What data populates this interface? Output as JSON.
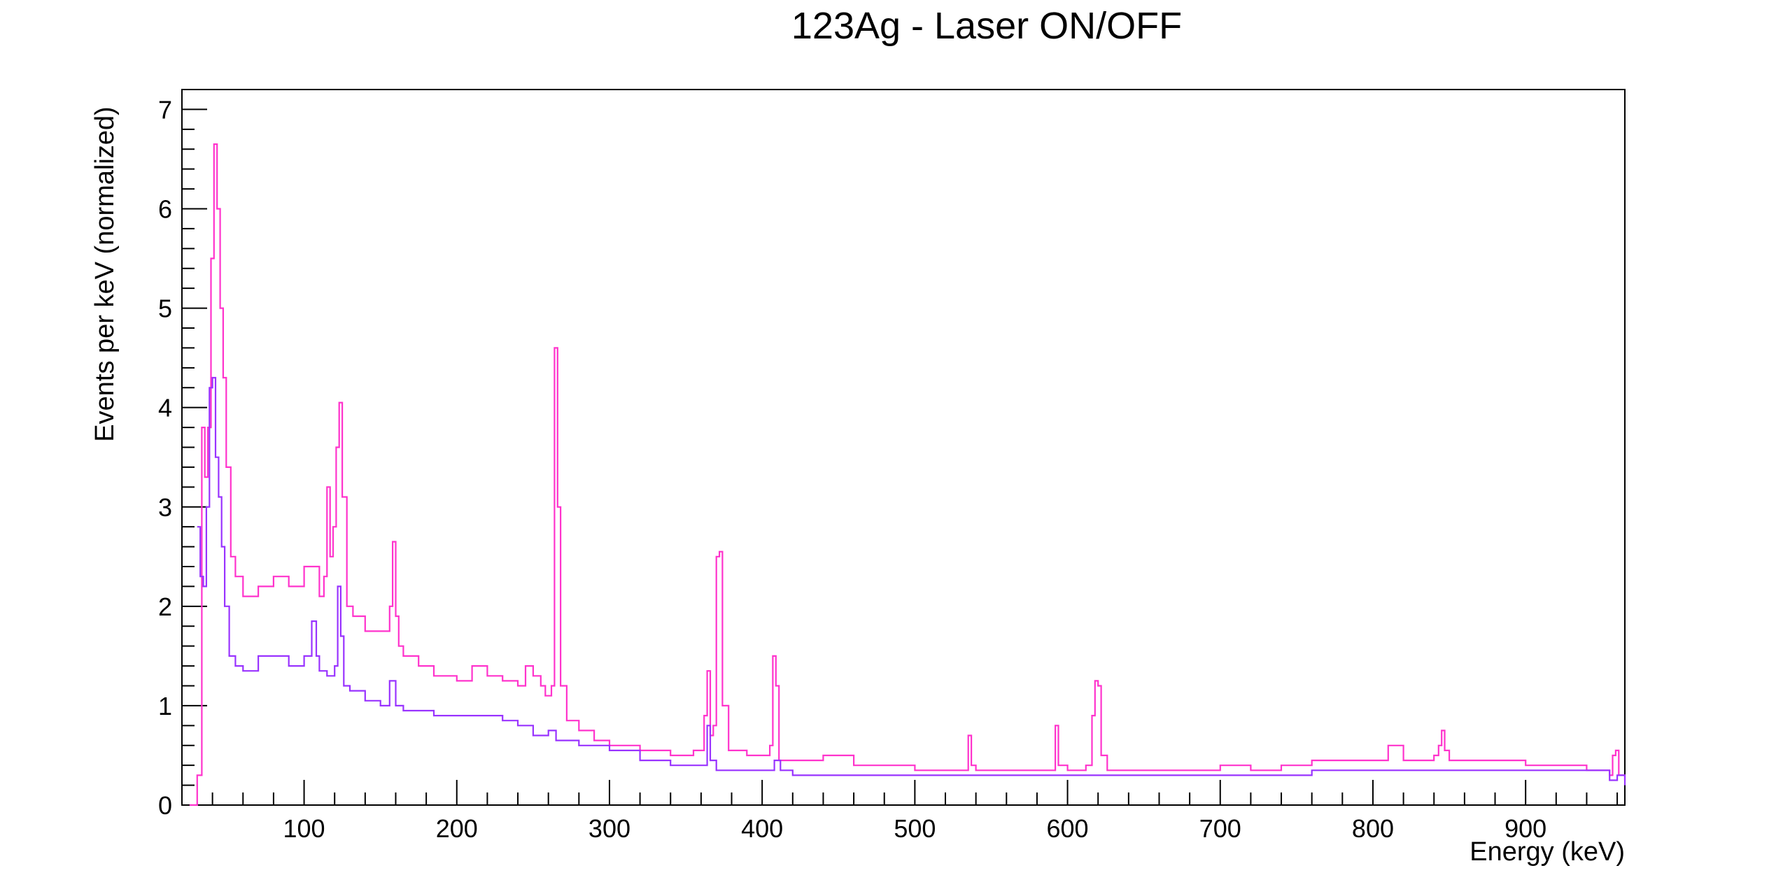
{
  "chart_data": {
    "type": "line",
    "title": "123Ag - Laser ON/OFF",
    "xlabel": "Energy (keV)",
    "ylabel": "Events per keV (normalized)",
    "xlim": [
      20,
      965
    ],
    "ylim": [
      0,
      7.2
    ],
    "x_ticks": [
      {
        "value": 100,
        "label": "100"
      },
      {
        "value": 200,
        "label": "200"
      },
      {
        "value": 300,
        "label": "300"
      },
      {
        "value": 400,
        "label": "400"
      },
      {
        "value": 500,
        "label": "500"
      },
      {
        "value": 600,
        "label": "600"
      },
      {
        "value": 700,
        "label": "700"
      },
      {
        "value": 800,
        "label": "800"
      },
      {
        "value": 900,
        "label": "900"
      }
    ],
    "y_ticks": [
      {
        "value": 0,
        "label": "0"
      },
      {
        "value": 1,
        "label": "1"
      },
      {
        "value": 2,
        "label": "2"
      },
      {
        "value": 3,
        "label": "3"
      },
      {
        "value": 4,
        "label": "4"
      },
      {
        "value": 5,
        "label": "5"
      },
      {
        "value": 6,
        "label": "6"
      },
      {
        "value": 7,
        "label": "7"
      }
    ],
    "grid": false,
    "legend": "none",
    "series": [
      {
        "color": "#ff33cc",
        "style": "step",
        "x": [
          25,
          30,
          33,
          35,
          37,
          39,
          41,
          43,
          45,
          47,
          49,
          52,
          55,
          60,
          70,
          80,
          90,
          100,
          110,
          113,
          115,
          117,
          119,
          121,
          123,
          125,
          128,
          132,
          140,
          150,
          156,
          158,
          160,
          162,
          165,
          175,
          185,
          200,
          210,
          220,
          230,
          240,
          245,
          250,
          255,
          258,
          260,
          262,
          264,
          266,
          268,
          272,
          280,
          290,
          300,
          320,
          340,
          355,
          362,
          364,
          366,
          368,
          370,
          372,
          374,
          378,
          390,
          405,
          407,
          409,
          411,
          415,
          425,
          440,
          460,
          480,
          500,
          520,
          533,
          535,
          537,
          540,
          560,
          580,
          590,
          592,
          594,
          600,
          612,
          616,
          618,
          620,
          622,
          626,
          640,
          660,
          680,
          700,
          720,
          740,
          760,
          780,
          800,
          810,
          820,
          830,
          840,
          843,
          845,
          847,
          850,
          860,
          880,
          900,
          920,
          940,
          955,
          957,
          959,
          961,
          965
        ],
        "values": [
          0,
          0.3,
          3.8,
          3.3,
          3.8,
          5.5,
          6.65,
          6.0,
          5.0,
          4.3,
          3.4,
          2.5,
          2.3,
          2.1,
          2.2,
          2.3,
          2.2,
          2.4,
          2.1,
          2.3,
          3.2,
          2.5,
          2.8,
          3.6,
          4.05,
          3.1,
          2.0,
          1.9,
          1.75,
          1.75,
          2.0,
          2.65,
          1.9,
          1.6,
          1.5,
          1.4,
          1.3,
          1.25,
          1.4,
          1.3,
          1.25,
          1.2,
          1.4,
          1.3,
          1.2,
          1.1,
          1.1,
          1.2,
          4.6,
          3.0,
          1.2,
          0.85,
          0.75,
          0.65,
          0.6,
          0.55,
          0.5,
          0.55,
          0.9,
          1.35,
          0.7,
          0.8,
          2.5,
          2.55,
          1.0,
          0.55,
          0.5,
          0.6,
          1.5,
          1.2,
          0.45,
          0.45,
          0.45,
          0.5,
          0.4,
          0.4,
          0.35,
          0.35,
          0.35,
          0.7,
          0.4,
          0.35,
          0.35,
          0.35,
          0.35,
          0.8,
          0.4,
          0.35,
          0.4,
          0.9,
          1.25,
          1.2,
          0.5,
          0.35,
          0.35,
          0.35,
          0.35,
          0.4,
          0.35,
          0.4,
          0.45,
          0.45,
          0.45,
          0.6,
          0.45,
          0.45,
          0.5,
          0.6,
          0.75,
          0.55,
          0.45,
          0.45,
          0.45,
          0.4,
          0.4,
          0.35,
          0.3,
          0.5,
          0.55,
          0.3,
          0.25
        ]
      },
      {
        "color": "#9933ff",
        "style": "step",
        "x": [
          30,
          32,
          34,
          36,
          38,
          40,
          42,
          44,
          46,
          48,
          51,
          55,
          60,
          70,
          80,
          90,
          100,
          105,
          108,
          110,
          115,
          120,
          122,
          124,
          126,
          130,
          140,
          150,
          156,
          160,
          165,
          175,
          185,
          200,
          210,
          220,
          230,
          240,
          250,
          260,
          265,
          270,
          280,
          300,
          320,
          340,
          360,
          364,
          366,
          370,
          380,
          400,
          408,
          412,
          420,
          440,
          460,
          480,
          500,
          520,
          540,
          560,
          600,
          640,
          680,
          720,
          760,
          800,
          840,
          880,
          920,
          955,
          960,
          965
        ],
        "values": [
          2.8,
          2.3,
          2.2,
          3.0,
          4.2,
          4.3,
          3.5,
          3.1,
          2.6,
          2.0,
          1.5,
          1.4,
          1.35,
          1.5,
          1.5,
          1.4,
          1.5,
          1.85,
          1.5,
          1.35,
          1.3,
          1.4,
          2.2,
          1.7,
          1.2,
          1.15,
          1.05,
          1.0,
          1.25,
          1.0,
          0.95,
          0.95,
          0.9,
          0.9,
          0.9,
          0.9,
          0.85,
          0.8,
          0.7,
          0.75,
          0.65,
          0.65,
          0.6,
          0.55,
          0.45,
          0.4,
          0.4,
          0.8,
          0.45,
          0.35,
          0.35,
          0.35,
          0.45,
          0.35,
          0.3,
          0.3,
          0.3,
          0.3,
          0.3,
          0.3,
          0.3,
          0.3,
          0.3,
          0.3,
          0.3,
          0.3,
          0.35,
          0.35,
          0.35,
          0.35,
          0.35,
          0.25,
          0.3,
          0.2
        ]
      }
    ]
  }
}
